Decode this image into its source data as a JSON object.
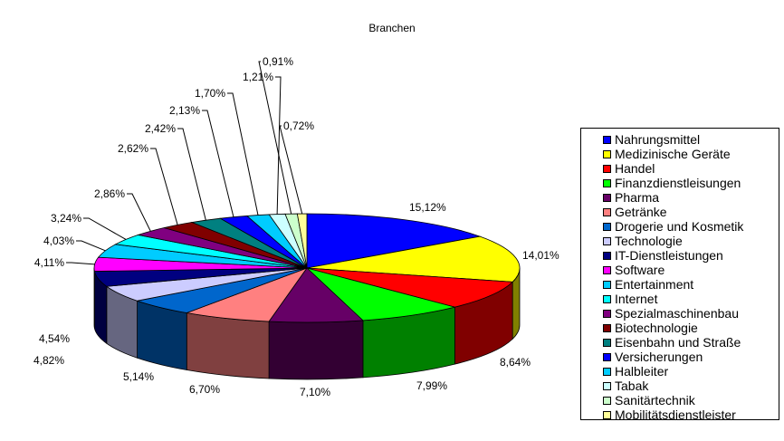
{
  "chart_data": {
    "type": "pie",
    "title": "Branchen",
    "three_d": true,
    "legend_position": "right",
    "slices": [
      {
        "name": "Nahrungsmittel",
        "value": 15.12,
        "label": "15,12%",
        "color": "#0000FF"
      },
      {
        "name": "Medizinische Geräte",
        "value": 14.01,
        "label": "14,01%",
        "color": "#FFFF00"
      },
      {
        "name": "Handel",
        "value": 8.64,
        "label": "8,64%",
        "color": "#FF0000"
      },
      {
        "name": "Finanzdienstleisungen",
        "value": 7.99,
        "label": "7,99%",
        "color": "#00FF00"
      },
      {
        "name": "Pharma",
        "value": 7.1,
        "label": "7,10%",
        "color": "#660066"
      },
      {
        "name": "Getränke",
        "value": 6.7,
        "label": "6,70%",
        "color": "#FF8080"
      },
      {
        "name": "Drogerie und Kosmetik",
        "value": 5.14,
        "label": "5,14%",
        "color": "#0066CC"
      },
      {
        "name": "Technologie",
        "value": 4.82,
        "label": "4,82%",
        "color": "#CCCCFF"
      },
      {
        "name": "IT-Dienstleistungen",
        "value": 4.54,
        "label": "4,54%",
        "color": "#000080"
      },
      {
        "name": "Software",
        "value": 4.11,
        "label": "4,11%",
        "color": "#FF00FF"
      },
      {
        "name": "Entertainment",
        "value": 4.03,
        "label": "4,03%",
        "color": "#00CCFF"
      },
      {
        "name": "Internet",
        "value": 3.24,
        "label": "3,24%",
        "color": "#00FFFF"
      },
      {
        "name": "Spezialmaschinenbau",
        "value": 2.86,
        "label": "2,86%",
        "color": "#800080"
      },
      {
        "name": "Biotechnologie",
        "value": 2.62,
        "label": "2,62%",
        "color": "#800000"
      },
      {
        "name": "Eisenbahn und Straße",
        "value": 2.42,
        "label": "2,42%",
        "color": "#008080"
      },
      {
        "name": "Versicherungen",
        "value": 2.13,
        "label": "2,13%",
        "color": "#0000FF"
      },
      {
        "name": "Halbleiter",
        "value": 1.7,
        "label": "1,70%",
        "color": "#00CCFF"
      },
      {
        "name": "Tabak",
        "value": 1.21,
        "label": "1,21%",
        "color": "#CCFFFF"
      },
      {
        "name": "Sanitärtechnik",
        "value": 0.91,
        "label": "0,91%",
        "color": "#CCFFCC"
      },
      {
        "name": "Mobilitätsdienstleister",
        "value": 0.72,
        "label": "0,72%",
        "color": "#FFFF99"
      }
    ]
  }
}
